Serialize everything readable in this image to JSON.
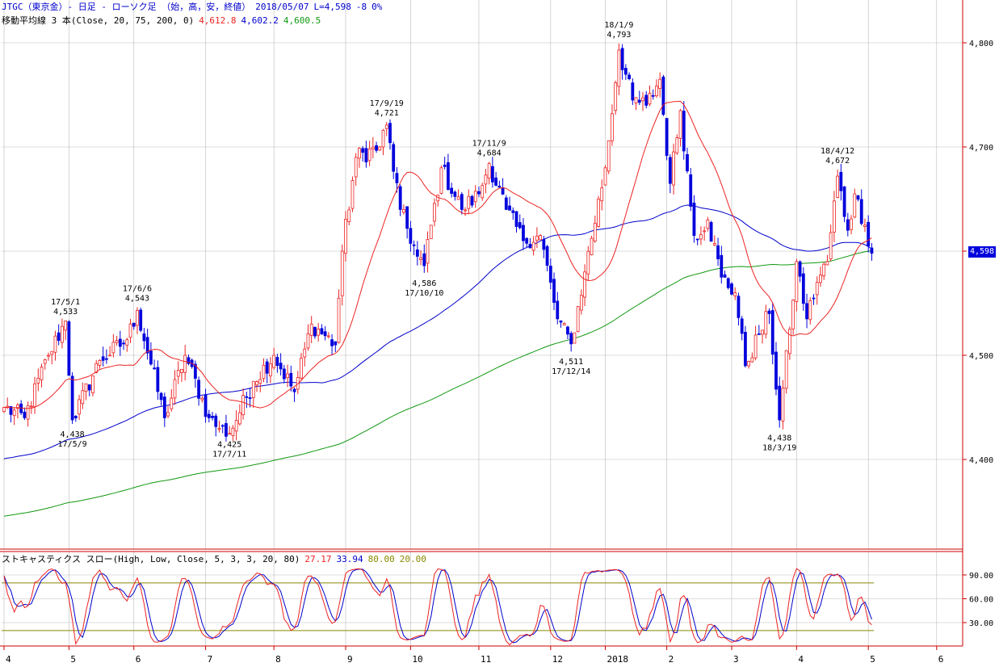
{
  "header": {
    "line1": {
      "symbol": "JTGC（東京金）- 日足 - ローソク足 （始，高，安，終値）",
      "date": "2018/05/07",
      "last": "L=4,598",
      "change": "-8",
      "pct": "0%"
    },
    "line2": {
      "ma_label": "移動平均線 3 本(Close, 20, 75, 200, 0)",
      "ma20": "4,612.8",
      "ma75": "4,602.2",
      "ma200": "4,600.5"
    },
    "stoch": {
      "label": "ストキャスティクス スロー(High, Low, Close, 5, 3, 3, 20, 80)",
      "k": "27.17",
      "d": "33.94",
      "upper": "80.00",
      "lower": "20.00"
    }
  },
  "colors": {
    "up": "#ee2222",
    "down": "#0000dd",
    "ma20": "#ee2222",
    "ma75": "#0000cc",
    "ma200": "#119911",
    "stoch_k": "#ee2222",
    "stoch_d": "#0000cc",
    "bands": "#888800",
    "frame": "#cc0000",
    "grid": "#bbbbbb"
  },
  "chart_data": {
    "type": "candlestick",
    "y_axis": {
      "min": 4300,
      "max": 4820,
      "ticks": [
        "4,400",
        "4,500",
        "4,600",
        "4,700",
        "4,800"
      ]
    },
    "last_price": "4,598",
    "x_axis": {
      "labels": [
        "4",
        "5",
        "6",
        "7",
        "8",
        "9",
        "10",
        "11",
        "12",
        "2018",
        "2",
        "3",
        "4",
        "5",
        "6"
      ],
      "label_date_index": [
        0,
        19,
        38,
        59,
        79,
        100,
        119,
        139,
        160,
        176,
        194,
        213,
        232,
        253,
        273
      ]
    },
    "anchors": [
      {
        "i": 0,
        "v": 4450
      },
      {
        "i": 6,
        "v": 4440
      },
      {
        "i": 13,
        "v": 4500
      },
      {
        "i": 18,
        "v": 4533
      },
      {
        "i": 20,
        "v": 4438
      },
      {
        "i": 28,
        "v": 4495
      },
      {
        "i": 36,
        "v": 4515
      },
      {
        "i": 39,
        "v": 4543
      },
      {
        "i": 47,
        "v": 4440
      },
      {
        "i": 53,
        "v": 4500
      },
      {
        "i": 60,
        "v": 4440
      },
      {
        "i": 63,
        "v": 4430
      },
      {
        "i": 66,
        "v": 4425
      },
      {
        "i": 73,
        "v": 4475
      },
      {
        "i": 79,
        "v": 4500
      },
      {
        "i": 85,
        "v": 4465
      },
      {
        "i": 90,
        "v": 4530
      },
      {
        "i": 97,
        "v": 4510
      },
      {
        "i": 99,
        "v": 4600
      },
      {
        "i": 103,
        "v": 4690
      },
      {
        "i": 110,
        "v": 4700
      },
      {
        "i": 112,
        "v": 4721
      },
      {
        "i": 116,
        "v": 4640
      },
      {
        "i": 121,
        "v": 4595
      },
      {
        "i": 123,
        "v": 4586
      },
      {
        "i": 128,
        "v": 4680
      },
      {
        "i": 134,
        "v": 4640
      },
      {
        "i": 139,
        "v": 4655
      },
      {
        "i": 142,
        "v": 4684
      },
      {
        "i": 147,
        "v": 4640
      },
      {
        "i": 152,
        "v": 4610
      },
      {
        "i": 157,
        "v": 4615
      },
      {
        "i": 162,
        "v": 4535
      },
      {
        "i": 166,
        "v": 4511
      },
      {
        "i": 170,
        "v": 4580
      },
      {
        "i": 176,
        "v": 4680
      },
      {
        "i": 180,
        "v": 4793
      },
      {
        "i": 184,
        "v": 4745
      },
      {
        "i": 188,
        "v": 4740
      },
      {
        "i": 192,
        "v": 4765
      },
      {
        "i": 195,
        "v": 4665
      },
      {
        "i": 198,
        "v": 4735
      },
      {
        "i": 202,
        "v": 4615
      },
      {
        "i": 206,
        "v": 4630
      },
      {
        "i": 210,
        "v": 4575
      },
      {
        "i": 214,
        "v": 4560
      },
      {
        "i": 217,
        "v": 4490
      },
      {
        "i": 221,
        "v": 4520
      },
      {
        "i": 224,
        "v": 4540
      },
      {
        "i": 227,
        "v": 4438
      },
      {
        "i": 230,
        "v": 4525
      },
      {
        "i": 232,
        "v": 4590
      },
      {
        "i": 235,
        "v": 4535
      },
      {
        "i": 238,
        "v": 4570
      },
      {
        "i": 241,
        "v": 4590
      },
      {
        "i": 244,
        "v": 4672
      },
      {
        "i": 247,
        "v": 4620
      },
      {
        "i": 249,
        "v": 4655
      },
      {
        "i": 252,
        "v": 4625
      },
      {
        "i": 254,
        "v": 4598
      }
    ],
    "annotations": [
      {
        "i": 18,
        "date": "17/5/1",
        "price": "4,533",
        "pos": "above"
      },
      {
        "i": 20,
        "date": "17/5/9",
        "price": "4,438",
        "pos": "below"
      },
      {
        "i": 39,
        "date": "17/6/6",
        "price": "4,543",
        "pos": "above"
      },
      {
        "i": 66,
        "date": "17/7/11",
        "price": "4,425",
        "pos": "below"
      },
      {
        "i": 112,
        "date": "17/9/19",
        "price": "4,721",
        "pos": "above"
      },
      {
        "i": 123,
        "date": "17/10/10",
        "price": "4,586",
        "pos": "below"
      },
      {
        "i": 142,
        "date": "17/11/9",
        "price": "4,684",
        "pos": "above"
      },
      {
        "i": 166,
        "date": "17/12/14",
        "price": "4,511",
        "pos": "below"
      },
      {
        "i": 180,
        "date": "18/1/9",
        "price": "4,793",
        "pos": "above"
      },
      {
        "i": 227,
        "date": "18/3/19",
        "price": "4,438",
        "pos": "below"
      },
      {
        "i": 244,
        "date": "18/4/12",
        "price": "4,672",
        "pos": "above"
      }
    ],
    "moving_averages": [
      {
        "period": 20,
        "last": 4612.8
      },
      {
        "period": 75,
        "last": 4602.2
      },
      {
        "period": 200,
        "last": 4600.5
      }
    ],
    "stochastic": {
      "y_ticks": [
        "30.00",
        "60.00",
        "90.00"
      ],
      "range": [
        0,
        100
      ],
      "upper": 80,
      "lower": 20,
      "k_last": 27.17,
      "d_last": 33.94
    }
  }
}
